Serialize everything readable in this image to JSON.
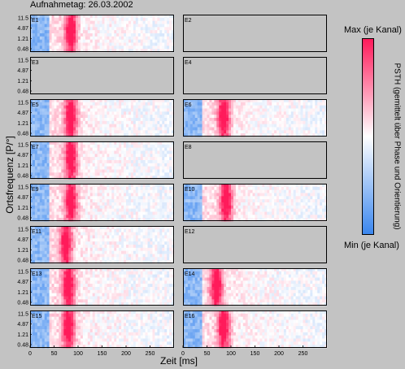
{
  "figure": {
    "title": "Aufnahmetag: 26.03.2002",
    "ylabel": "Ortsfrequenz [P/°]",
    "xlabel": "Zeit [ms]",
    "colorbar": {
      "max_label": "Max (je Kanal)",
      "min_label": "Min (je Kanal)",
      "label": "PSTH (gemittelt über Phase und Orientierung)",
      "colors": [
        "#3a86ee",
        "#ffffff",
        "#ff1a5a"
      ]
    },
    "background": "#c3c3c3"
  },
  "chart_data": {
    "type": "heatmap",
    "x_ticks": [
      0,
      50,
      100,
      150,
      200,
      250
    ],
    "x_range": [
      0,
      300
    ],
    "y_ticks": [
      "11.5",
      "4.87",
      "1.21",
      "0.48"
    ],
    "panels": [
      {
        "label": "E1",
        "has_data": true,
        "peak_ms": 85
      },
      {
        "label": "E2",
        "has_data": false
      },
      {
        "label": "E3",
        "has_data": false
      },
      {
        "label": "E4",
        "has_data": false
      },
      {
        "label": "E5",
        "has_data": true,
        "peak_ms": 85
      },
      {
        "label": "E6",
        "has_data": true,
        "peak_ms": 85
      },
      {
        "label": "E7",
        "has_data": true,
        "peak_ms": 85
      },
      {
        "label": "E8",
        "has_data": false
      },
      {
        "label": "E9",
        "has_data": true,
        "peak_ms": 85
      },
      {
        "label": "E10",
        "has_data": true,
        "peak_ms": 90
      },
      {
        "label": "E11",
        "has_data": true,
        "peak_ms": 75
      },
      {
        "label": "E12",
        "has_data": false
      },
      {
        "label": "E13",
        "has_data": true,
        "peak_ms": 80
      },
      {
        "label": "E14",
        "has_data": true,
        "peak_ms": 70
      },
      {
        "label": "E15",
        "has_data": true,
        "peak_ms": 80
      },
      {
        "label": "E16",
        "has_data": true,
        "peak_ms": 85
      }
    ]
  }
}
